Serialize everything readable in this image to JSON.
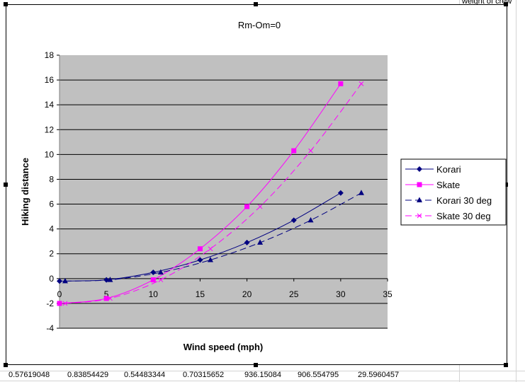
{
  "spreadsheet": {
    "top_right_text": "weight of crew",
    "bottom_row": [
      "0.57619048",
      "0.83854429",
      "0.54483344",
      "0.70315652",
      "936.15084",
      "906.554795",
      "29.5960457"
    ]
  },
  "chart_data": {
    "type": "line",
    "title": "Rm-Om=0",
    "xlabel": "Wind speed (mph)",
    "ylabel": "Hiking distance",
    "xlim": [
      0,
      35
    ],
    "ylim": [
      -4,
      18
    ],
    "x_ticks": [
      "0",
      "5",
      "10",
      "15",
      "20",
      "25",
      "30",
      "35"
    ],
    "y_ticks": [
      "-4",
      "-2",
      "0",
      "2",
      "4",
      "6",
      "8",
      "10",
      "12",
      "14",
      "16",
      "18"
    ],
    "grid": "horizontal",
    "legend_position": "right",
    "plot_background": "#c0c0c0",
    "series": [
      {
        "name": "Korari",
        "color": "#000080",
        "marker": "diamond",
        "dash": "solid",
        "x": [
          0,
          5,
          10,
          15,
          20,
          25,
          30
        ],
        "y": [
          -0.2,
          -0.1,
          0.5,
          1.5,
          2.9,
          4.7,
          6.9
        ]
      },
      {
        "name": "Skate",
        "color": "#ff00ff",
        "marker": "square",
        "dash": "solid",
        "x": [
          0,
          5,
          10,
          15,
          20,
          25,
          30
        ],
        "y": [
          -2.0,
          -1.6,
          -0.1,
          2.4,
          5.8,
          10.3,
          15.7
        ]
      },
      {
        "name": " Korari 30 deg",
        "color": "#000080",
        "marker": "triangle",
        "dash": "dashed",
        "x": [
          0.6,
          5.4,
          10.8,
          16.1,
          21.4,
          26.8,
          32.2
        ],
        "y": [
          -0.2,
          -0.1,
          0.5,
          1.5,
          2.9,
          4.7,
          6.9
        ]
      },
      {
        "name": "Skate 30 deg",
        "color": "#ff00ff",
        "marker": "x",
        "dash": "dashed",
        "x": [
          0.6,
          5.4,
          10.8,
          16.1,
          21.4,
          26.8,
          32.2
        ],
        "y": [
          -2.0,
          -1.6,
          -0.1,
          2.4,
          5.8,
          10.3,
          15.7
        ]
      }
    ]
  }
}
